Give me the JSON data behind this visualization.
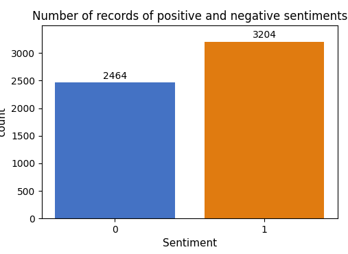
{
  "categories": [
    "0",
    "1"
  ],
  "values": [
    2464,
    3204
  ],
  "bar_colors": [
    "#4472c4",
    "#e07b10"
  ],
  "title": "Number of records of positive and negative sentiments",
  "xlabel": "Sentiment",
  "ylabel": "count",
  "ylim": [
    0,
    3500
  ],
  "yticks": [
    0,
    500,
    1000,
    1500,
    2000,
    2500,
    3000
  ],
  "title_fontsize": 12,
  "label_fontsize": 11,
  "tick_fontsize": 10,
  "annotation_fontsize": 10,
  "bar_width": 0.8,
  "figure_width": 5.07,
  "figure_height": 3.7,
  "dpi": 100
}
